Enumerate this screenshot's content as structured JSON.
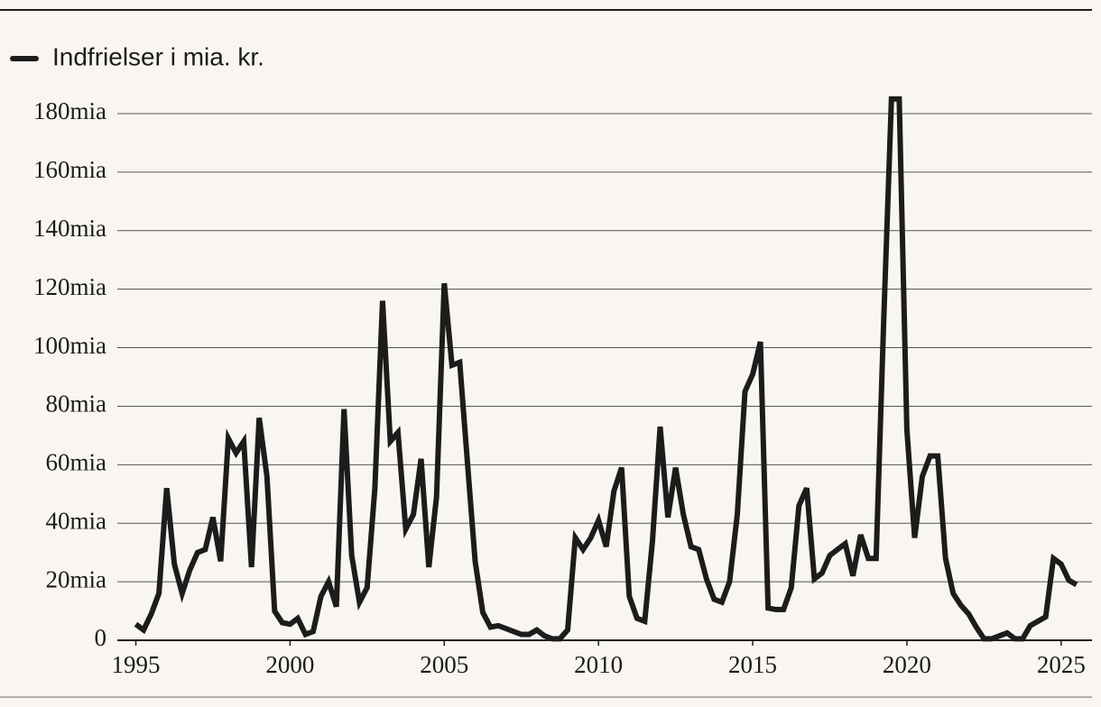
{
  "chart_data": {
    "type": "line",
    "x": [
      1995,
      1995.25,
      1995.5,
      1995.75,
      1996,
      1996.25,
      1996.5,
      1996.75,
      1997,
      1997.25,
      1997.5,
      1997.75,
      1998,
      1998.25,
      1998.5,
      1998.75,
      1999,
      1999.25,
      1999.5,
      1999.75,
      2000,
      2000.25,
      2000.5,
      2000.75,
      2001,
      2001.25,
      2001.5,
      2001.75,
      2002,
      2002.25,
      2002.5,
      2002.75,
      2003,
      2003.25,
      2003.5,
      2003.75,
      2004,
      2004.25,
      2004.5,
      2004.75,
      2005,
      2005.25,
      2005.5,
      2005.75,
      2006,
      2006.25,
      2006.5,
      2006.75,
      2007,
      2007.25,
      2007.5,
      2007.75,
      2008,
      2008.25,
      2008.5,
      2008.75,
      2009,
      2009.25,
      2009.5,
      2009.75,
      2010,
      2010.25,
      2010.5,
      2010.75,
      2011,
      2011.25,
      2011.5,
      2011.75,
      2012,
      2012.25,
      2012.5,
      2012.75,
      2013,
      2013.25,
      2013.5,
      2013.75,
      2014,
      2014.25,
      2014.5,
      2014.75,
      2015,
      2015.25,
      2015.5,
      2015.75,
      2016,
      2016.25,
      2016.5,
      2016.75,
      2017,
      2017.25,
      2017.5,
      2017.75,
      2018,
      2018.25,
      2018.5,
      2018.75,
      2019,
      2019.25,
      2019.5,
      2019.75,
      2020,
      2020.25,
      2020.5,
      2020.75,
      2021,
      2021.25,
      2021.5,
      2021.75,
      2022,
      2022.25,
      2022.5,
      2022.75,
      2023,
      2023.25,
      2023.5,
      2023.75,
      2024,
      2024.25,
      2024.5,
      2024.75,
      2025,
      2025.25,
      2025.5
    ],
    "series": [
      {
        "name": "Indfrielser i mia. kr.",
        "color": "#1c1c1c",
        "values": [
          5.5,
          3.5,
          9,
          16,
          52,
          26,
          16,
          24,
          30,
          31,
          42,
          27,
          69,
          64,
          68,
          25,
          76,
          56,
          10,
          6,
          5.5,
          7.5,
          2,
          3,
          15,
          20,
          11.5,
          79,
          29,
          13,
          18,
          52,
          116,
          68,
          71,
          38,
          43,
          62,
          25,
          49,
          122,
          94,
          95,
          61,
          27,
          9.5,
          4.5,
          5,
          4,
          3,
          2,
          2,
          3.5,
          1.5,
          0.5,
          0.5,
          3.5,
          35,
          31,
          35,
          41,
          32,
          51,
          59,
          15,
          7.5,
          6.5,
          34,
          73,
          42,
          59,
          43,
          32,
          31,
          21,
          14,
          13,
          20,
          43,
          85,
          91,
          102,
          11,
          10.5,
          10.5,
          18,
          46,
          52,
          21,
          23,
          29,
          31,
          33,
          22,
          36,
          28,
          28,
          110,
          185,
          185,
          72,
          35,
          56,
          63,
          63,
          28,
          16,
          12,
          9,
          4.5,
          0.5,
          0.5,
          1.5,
          2.5,
          0.5,
          0.5,
          5,
          6.5,
          8,
          28,
          26,
          20.5,
          19
        ]
      }
    ],
    "xlim": [
      1994.4,
      2026
    ],
    "ylim": [
      0,
      180
    ],
    "xticks": [
      1995,
      2000,
      2005,
      2010,
      2015,
      2020,
      2025
    ],
    "yticks": [
      0,
      {
        "value": 20,
        "label": "20mia"
      },
      {
        "value": 40,
        "label": "40mia"
      },
      {
        "value": 60,
        "label": "60mia"
      },
      {
        "value": 80,
        "label": "80mia"
      },
      {
        "value": 100,
        "label": "100mia"
      },
      {
        "value": 120,
        "label": "120mia"
      },
      {
        "value": 140,
        "label": "140mia"
      },
      {
        "value": 160,
        "label": "160mia"
      },
      {
        "value": 180,
        "label": "180mia"
      }
    ],
    "grid": true
  }
}
